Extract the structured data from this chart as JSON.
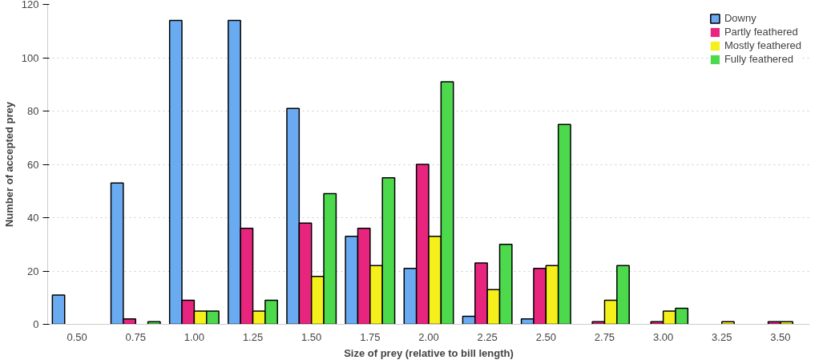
{
  "chart_data": {
    "type": "bar",
    "xlabel": "Size of prey (relative to bill length)",
    "ylabel": "Number of accepted prey",
    "categories": [
      "0.50",
      "0.75",
      "1.00",
      "1.25",
      "1.50",
      "1.75",
      "2.00",
      "2.25",
      "2.50",
      "2.75",
      "3.00",
      "3.25",
      "3.50"
    ],
    "series": [
      {
        "name": "Downy",
        "color": "#6aaaf0",
        "values": [
          11,
          53,
          114,
          114,
          81,
          33,
          21,
          3,
          2,
          0,
          0,
          0,
          0
        ]
      },
      {
        "name": "Partly feathered",
        "color": "#e8257e",
        "values": [
          0,
          2,
          9,
          36,
          38,
          36,
          60,
          23,
          21,
          1,
          1,
          0,
          1
        ]
      },
      {
        "name": "Mostly feathered",
        "color": "#f5ef1c",
        "values": [
          0,
          0,
          5,
          5,
          18,
          22,
          33,
          13,
          22,
          9,
          5,
          1,
          1
        ]
      },
      {
        "name": "Fully feathered",
        "color": "#4cd94c",
        "values": [
          0,
          1,
          5,
          9,
          49,
          55,
          91,
          30,
          75,
          22,
          6,
          0,
          0
        ]
      }
    ],
    "ylim": [
      0,
      120
    ],
    "yticks": [
      0,
      20,
      40,
      60,
      80,
      100,
      120
    ],
    "grid": "y",
    "legend": "top right"
  }
}
